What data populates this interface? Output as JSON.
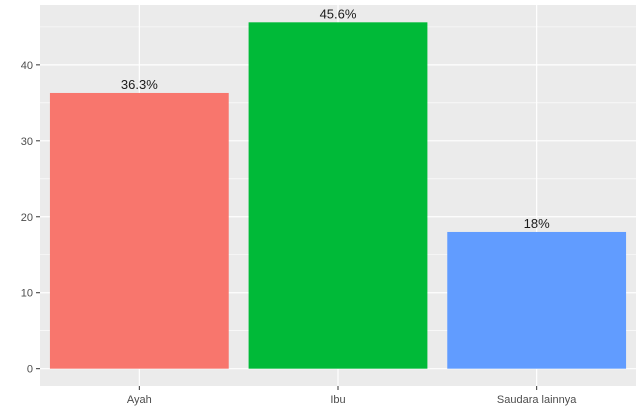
{
  "chart_data": {
    "type": "bar",
    "categories": [
      "Ayah",
      "Ibu",
      "Saudara lainnya"
    ],
    "values": [
      36.3,
      45.6,
      18
    ],
    "data_labels": [
      "36.3%",
      "45.6%",
      "18%"
    ],
    "colors": [
      "#F8766D",
      "#00BA38",
      "#619CFF"
    ],
    "title": "",
    "xlabel": "",
    "ylabel": "",
    "ylim": [
      -2.28,
      47.88
    ],
    "yticks": [
      0,
      10,
      20,
      30,
      40
    ],
    "ytick_labels": [
      "0",
      "10",
      "20",
      "30",
      "40"
    ],
    "panel_background": "#EBEBEB",
    "grid_color": "#FFFFFF",
    "grid": true,
    "legend": "none"
  }
}
